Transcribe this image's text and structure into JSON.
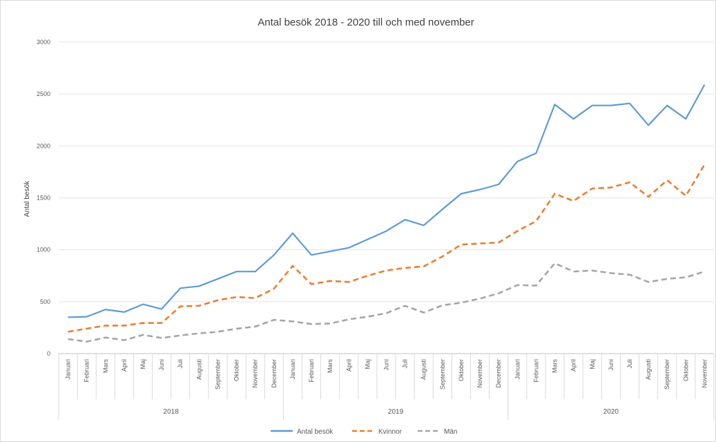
{
  "chart_data": {
    "type": "line",
    "title": "Antal besök 2018 - 2020 till och med november",
    "xlabel": "",
    "ylabel": "Antal besök",
    "ylim": [
      0,
      3000
    ],
    "yticks": [
      "0",
      "500",
      "1000",
      "1500",
      "2000",
      "2500",
      "3000"
    ],
    "grid": true,
    "legend_position": "bottom",
    "groups": [
      {
        "label": "2018",
        "count": 12
      },
      {
        "label": "2019",
        "count": 12
      },
      {
        "label": "2020",
        "count": 11
      }
    ],
    "categories": [
      "Januari",
      "Februari",
      "Mars",
      "April",
      "Maj",
      "Juni",
      "Juli",
      "Augusti",
      "September",
      "Oktober",
      "November",
      "December",
      "Januari",
      "Februari",
      "Mars",
      "April",
      "Maj",
      "Juni",
      "Juli",
      "Augusti",
      "September",
      "Oktober",
      "November",
      "December",
      "Januari",
      "Februari",
      "Mars",
      "April",
      "Maj",
      "Juni",
      "Juli",
      "Augusti",
      "September",
      "Oktober",
      "November"
    ],
    "series": [
      {
        "name": "Antal besök",
        "color": "#5b9bd5",
        "dash": "solid",
        "values": [
          350,
          355,
          425,
          400,
          475,
          430,
          630,
          650,
          720,
          790,
          790,
          950,
          1160,
          950,
          985,
          1020,
          1100,
          1180,
          1290,
          1235,
          1390,
          1540,
          1580,
          1630,
          1850,
          1930,
          2400,
          2260,
          2390,
          2390,
          2410,
          2200,
          2390,
          2260,
          2590
        ]
      },
      {
        "name": "Kvinnor",
        "color": "#ed7d31",
        "dash": "dashed",
        "values": [
          210,
          240,
          270,
          270,
          295,
          295,
          455,
          460,
          515,
          545,
          535,
          625,
          845,
          670,
          700,
          690,
          750,
          800,
          825,
          840,
          935,
          1050,
          1060,
          1070,
          1180,
          1275,
          1540,
          1470,
          1590,
          1600,
          1650,
          1510,
          1670,
          1520,
          1820
        ]
      },
      {
        "name": "Män",
        "color": "#a5a5a5",
        "dash": "dashed",
        "values": [
          140,
          115,
          155,
          130,
          180,
          150,
          175,
          195,
          210,
          240,
          260,
          325,
          310,
          285,
          290,
          330,
          355,
          390,
          460,
          395,
          465,
          490,
          530,
          580,
          660,
          655,
          870,
          790,
          800,
          775,
          760,
          690,
          720,
          735,
          790
        ]
      }
    ]
  }
}
